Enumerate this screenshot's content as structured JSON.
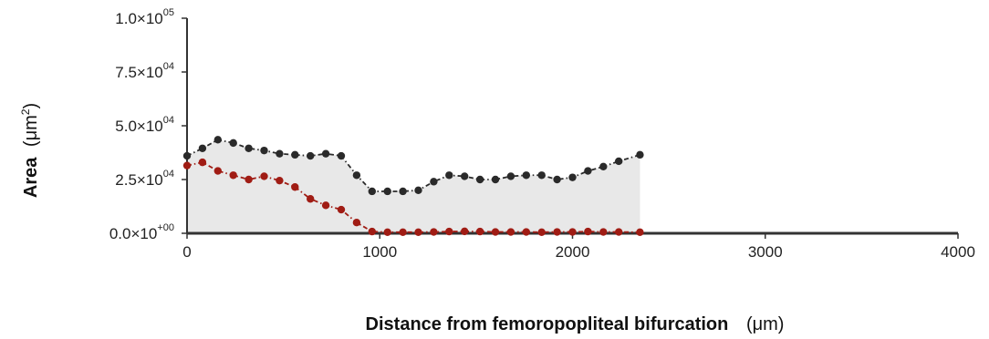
{
  "chart_data": {
    "type": "area",
    "xlabel": "Distance from femoropopliteal bifurcation",
    "xlabel_unit": "(μm)",
    "ylabel": "Area",
    "ylabel_unit": "(μm",
    "ylabel_unit_sup": "2",
    "ylabel_unit_close": ")",
    "xlim": [
      0,
      4000
    ],
    "ylim": [
      0,
      100000
    ],
    "x_ticks": [
      {
        "value": 0,
        "label": "0"
      },
      {
        "value": 1000,
        "label": "1000"
      },
      {
        "value": 2000,
        "label": "2000"
      },
      {
        "value": 3000,
        "label": "3000"
      },
      {
        "value": 4000,
        "label": "4000"
      }
    ],
    "y_ticks": [
      {
        "value": 0,
        "mantissa": "0.0×10",
        "exp": "+00"
      },
      {
        "value": 25000,
        "mantissa": "2.5×10",
        "exp": "04"
      },
      {
        "value": 50000,
        "mantissa": "5.0×10",
        "exp": "04"
      },
      {
        "value": 75000,
        "mantissa": "7.5×10",
        "exp": "04"
      },
      {
        "value": 100000,
        "mantissa": "1.0×10",
        "exp": "05"
      }
    ],
    "grid": false,
    "legend": "none",
    "shaded_region_color": "#e8e8e8",
    "series": [
      {
        "color": "#2a2a2a",
        "points": [
          [
            0,
            36000
          ],
          [
            80,
            39500
          ],
          [
            160,
            43500
          ],
          [
            240,
            42000
          ],
          [
            320,
            39500
          ],
          [
            400,
            38500
          ],
          [
            480,
            37000
          ],
          [
            560,
            36500
          ],
          [
            640,
            36000
          ],
          [
            720,
            37000
          ],
          [
            800,
            36000
          ],
          [
            880,
            27000
          ],
          [
            960,
            19500
          ],
          [
            1040,
            19500
          ],
          [
            1120,
            19500
          ],
          [
            1200,
            20000
          ],
          [
            1280,
            24000
          ],
          [
            1360,
            27000
          ],
          [
            1440,
            26500
          ],
          [
            1520,
            25000
          ],
          [
            1600,
            25000
          ],
          [
            1680,
            26500
          ],
          [
            1760,
            27000
          ],
          [
            1840,
            27000
          ],
          [
            1920,
            25000
          ],
          [
            2000,
            26000
          ],
          [
            2080,
            29000
          ],
          [
            2160,
            31000
          ],
          [
            2240,
            33500
          ],
          [
            2350,
            36500
          ]
        ]
      },
      {
        "color": "#a01c14",
        "points": [
          [
            0,
            31500
          ],
          [
            80,
            33000
          ],
          [
            160,
            29000
          ],
          [
            240,
            27000
          ],
          [
            320,
            25000
          ],
          [
            400,
            26500
          ],
          [
            480,
            24500
          ],
          [
            560,
            21500
          ],
          [
            640,
            16000
          ],
          [
            720,
            13000
          ],
          [
            800,
            11000
          ],
          [
            880,
            5000
          ],
          [
            960,
            800
          ],
          [
            1040,
            500
          ],
          [
            1120,
            500
          ],
          [
            1200,
            500
          ],
          [
            1280,
            600
          ],
          [
            1360,
            800
          ],
          [
            1440,
            900
          ],
          [
            1520,
            800
          ],
          [
            1600,
            600
          ],
          [
            1680,
            600
          ],
          [
            1760,
            600
          ],
          [
            1840,
            500
          ],
          [
            1920,
            600
          ],
          [
            2000,
            600
          ],
          [
            2080,
            800
          ],
          [
            2160,
            600
          ],
          [
            2240,
            600
          ],
          [
            2350,
            500
          ]
        ]
      }
    ]
  }
}
